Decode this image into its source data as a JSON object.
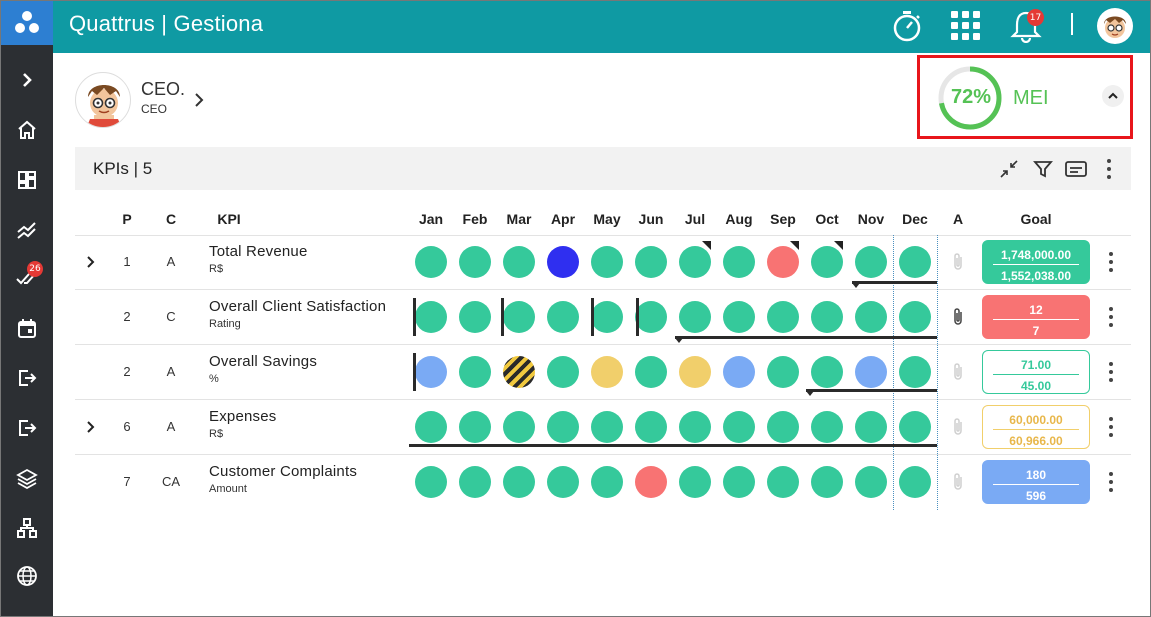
{
  "app": {
    "title": "Quattrus | Gestiona"
  },
  "topbar": {
    "notification_count": "17"
  },
  "sidebar": {
    "items": [
      {
        "icon": "chevron-right-icon"
      },
      {
        "icon": "home-icon"
      },
      {
        "icon": "dashboard-icon"
      },
      {
        "icon": "trending-icon"
      },
      {
        "icon": "done-all-icon",
        "badge": "26"
      },
      {
        "icon": "calendar-icon"
      },
      {
        "icon": "export-icon"
      },
      {
        "icon": "exit-icon"
      },
      {
        "icon": "layers-icon"
      },
      {
        "icon": "hierarchy-icon"
      },
      {
        "icon": "globe-icon"
      }
    ]
  },
  "profile": {
    "name": "CEO.",
    "role": "CEO"
  },
  "mei": {
    "percent_label": "72%",
    "progress": 0.72,
    "label": "MEI",
    "color": "#55c255"
  },
  "kpi_panel": {
    "title": "KPIs | 5"
  },
  "table": {
    "headers": {
      "p": "P",
      "c": "C",
      "kpi": "KPI",
      "a": "A",
      "goal": "Goal"
    },
    "months": [
      "Jan",
      "Feb",
      "Mar",
      "Apr",
      "May",
      "Jun",
      "Jul",
      "Aug",
      "Sep",
      "Oct",
      "Nov",
      "Dec"
    ],
    "rows": [
      {
        "expandable": true,
        "p": "1",
        "c": "A",
        "name": "Total Revenue",
        "unit": "R$",
        "statuses": [
          "green",
          "green",
          "green",
          "blue",
          "green",
          "green",
          "green",
          "green",
          "red",
          "green",
          "green",
          "green"
        ],
        "goal_top": "1,748,000.00",
        "goal_bottom": "1,552,038.00"
      },
      {
        "expandable": false,
        "p": "2",
        "c": "C",
        "name": "Overall Client Satisfaction",
        "unit": "Rating",
        "statuses": [
          "green",
          "green",
          "green",
          "green",
          "green",
          "green",
          "green",
          "green",
          "green",
          "green",
          "green",
          "green"
        ],
        "goal_top": "12",
        "goal_bottom": "7"
      },
      {
        "expandable": false,
        "p": "2",
        "c": "A",
        "name": "Overall Savings",
        "unit": "%",
        "statuses": [
          "lightblue",
          "green",
          "striped",
          "green",
          "yellow",
          "green",
          "yellow",
          "lightblue",
          "green",
          "green",
          "lightblue",
          "green"
        ],
        "goal_top": "71.00",
        "goal_bottom": "45.00"
      },
      {
        "expandable": true,
        "p": "6",
        "c": "A",
        "name": "Expenses",
        "unit": "R$",
        "statuses": [
          "green",
          "green",
          "green",
          "green",
          "green",
          "green",
          "green",
          "green",
          "green",
          "green",
          "green",
          "green"
        ],
        "goal_top": "60,000.00",
        "goal_bottom": "60,966.00"
      },
      {
        "expandable": false,
        "p": "7",
        "c": "CA",
        "name": "Customer Complaints",
        "unit": "Amount",
        "statuses": [
          "green",
          "green",
          "green",
          "green",
          "green",
          "red",
          "green",
          "green",
          "green",
          "green",
          "green",
          "green"
        ],
        "goal_top": "180",
        "goal_bottom": "596"
      }
    ]
  },
  "colors": {
    "topbar": "#0f9aa3",
    "sidebar": "#2c2f33",
    "logo": "#2d7fd2",
    "green": "#35c99b",
    "red": "#f87373",
    "blue": "#2f2ff0",
    "lightblue": "#7aaaf4",
    "yellow": "#f1cf6b"
  }
}
